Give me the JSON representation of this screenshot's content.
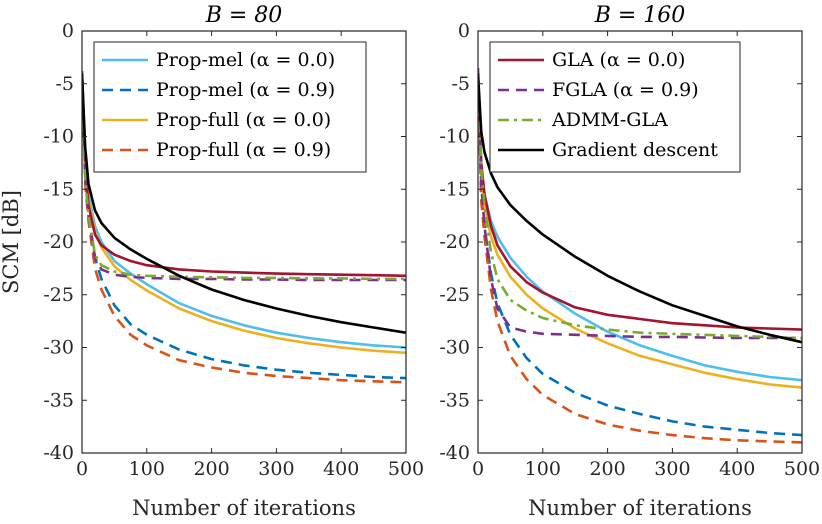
{
  "chart_data": [
    {
      "type": "line",
      "title": "B = 80",
      "xlabel": "Number of iterations",
      "ylabel": "SCM [dB]",
      "xlim": [
        0,
        500
      ],
      "ylim": [
        -40,
        0
      ],
      "xticks": [
        "0",
        "100",
        "200",
        "300",
        "400",
        "500"
      ],
      "yticks": [
        "0",
        "-5",
        "-10",
        "-15",
        "-20",
        "-25",
        "-30",
        "-35",
        "-40"
      ],
      "legend_position": "top-right",
      "legend": [
        "Prop-mel (α = 0.0)",
        "Prop-mel (α = 0.9)",
        "Prop-full (α = 0.0)",
        "Prop-full (α = 0.9)"
      ],
      "x": [
        0,
        5,
        10,
        20,
        30,
        50,
        75,
        100,
        150,
        200,
        250,
        300,
        350,
        400,
        450,
        500
      ],
      "series": [
        {
          "name": "Prop-mel (α = 0.0)",
          "color": "#4DBEEE",
          "dash": "solid",
          "values": [
            -4,
            -12,
            -15.5,
            -18.5,
            -20,
            -21.8,
            -23,
            -24,
            -25.8,
            -27,
            -27.9,
            -28.6,
            -29.1,
            -29.5,
            -29.8,
            -30
          ]
        },
        {
          "name": "Prop-mel (α = 0.9)",
          "color": "#0072BD",
          "dash": "dashed",
          "values": [
            -4,
            -14,
            -17.5,
            -21.5,
            -23.5,
            -26,
            -27.8,
            -28.8,
            -30.2,
            -31.1,
            -31.7,
            -32.1,
            -32.4,
            -32.6,
            -32.8,
            -32.9
          ]
        },
        {
          "name": "Prop-full (α = 0.0)",
          "color": "#EDB120",
          "dash": "solid",
          "values": [
            -4,
            -12.5,
            -16,
            -19,
            -20.5,
            -22.3,
            -23.6,
            -24.6,
            -26.3,
            -27.5,
            -28.4,
            -29.1,
            -29.6,
            -30,
            -30.3,
            -30.5
          ]
        },
        {
          "name": "Prop-full (α = 0.9)",
          "color": "#D95319",
          "dash": "dashed",
          "values": [
            -4,
            -14.5,
            -18,
            -22.5,
            -24.5,
            -27,
            -28.8,
            -29.8,
            -31.2,
            -31.9,
            -32.4,
            -32.7,
            -32.9,
            -33.1,
            -33.2,
            -33.3
          ]
        },
        {
          "name": "GLA (α = 0.0)",
          "color": "#A2142F",
          "dash": "solid",
          "values": [
            -4,
            -13,
            -16.5,
            -19.3,
            -20.3,
            -21.2,
            -21.8,
            -22.2,
            -22.6,
            -22.8,
            -22.9,
            -23,
            -23.05,
            -23.1,
            -23.15,
            -23.2
          ]
        },
        {
          "name": "FGLA (α = 0.9)",
          "color": "#7E2F8E",
          "dash": "dashed",
          "values": [
            -3.8,
            -13.5,
            -17.5,
            -21.5,
            -22.6,
            -23.1,
            -23.3,
            -23.4,
            -23.5,
            -23.5,
            -23.55,
            -23.55,
            -23.6,
            -23.6,
            -23.6,
            -23.6
          ]
        },
        {
          "name": "ADMM-GLA",
          "color": "#77AC30",
          "dash": "dashdot",
          "values": [
            -4,
            -14,
            -17.5,
            -21.2,
            -22.2,
            -22.8,
            -23.1,
            -23.2,
            -23.3,
            -23.35,
            -23.4,
            -23.4,
            -23.45,
            -23.45,
            -23.5,
            -23.5
          ]
        },
        {
          "name": "Gradient descent",
          "color": "#000000",
          "dash": "solid",
          "values": [
            -4,
            -11,
            -14.5,
            -17,
            -18.2,
            -19.6,
            -20.7,
            -21.6,
            -23.2,
            -24.5,
            -25.5,
            -26.3,
            -27,
            -27.6,
            -28.1,
            -28.6
          ]
        }
      ]
    },
    {
      "type": "line",
      "title": "B = 160",
      "xlabel": "Number of iterations",
      "ylabel": "",
      "xlim": [
        0,
        500
      ],
      "ylim": [
        -40,
        0
      ],
      "xticks": [
        "0",
        "100",
        "200",
        "300",
        "400",
        "500"
      ],
      "yticks": [
        "0",
        "-5",
        "-10",
        "-15",
        "-20",
        "-25",
        "-30",
        "-35",
        "-40"
      ],
      "legend_position": "top-right",
      "legend": [
        "GLA (α = 0.0)",
        "FGLA (α = 0.9)",
        "ADMM-GLA",
        "Gradient descent"
      ],
      "x": [
        0,
        5,
        10,
        20,
        30,
        50,
        75,
        100,
        150,
        200,
        250,
        300,
        350,
        400,
        450,
        500
      ],
      "series": [
        {
          "name": "Prop-mel (α = 0.0)",
          "color": "#4DBEEE",
          "dash": "solid",
          "values": [
            -4,
            -13,
            -15.5,
            -18,
            -19.5,
            -21.5,
            -23.3,
            -24.7,
            -26.8,
            -28.5,
            -29.8,
            -30.8,
            -31.7,
            -32.3,
            -32.8,
            -33.1
          ]
        },
        {
          "name": "Prop-mel (α = 0.9)",
          "color": "#0072BD",
          "dash": "dashed",
          "values": [
            -4,
            -15,
            -18.5,
            -23,
            -25.8,
            -28.8,
            -31,
            -32.5,
            -34.3,
            -35.5,
            -36.3,
            -37,
            -37.5,
            -37.8,
            -38.1,
            -38.3
          ]
        },
        {
          "name": "Prop-full (α = 0.0)",
          "color": "#EDB120",
          "dash": "solid",
          "values": [
            -4,
            -13.5,
            -16.5,
            -19.5,
            -21.2,
            -23.3,
            -25,
            -26.3,
            -28.2,
            -29.6,
            -30.8,
            -31.6,
            -32.4,
            -33,
            -33.5,
            -33.8
          ]
        },
        {
          "name": "Prop-full (α = 0.9)",
          "color": "#D95319",
          "dash": "dashed",
          "values": [
            -4,
            -16,
            -19.5,
            -24.5,
            -27.5,
            -30.8,
            -33,
            -34.5,
            -36.3,
            -37.3,
            -37.9,
            -38.3,
            -38.6,
            -38.8,
            -38.9,
            -39
          ]
        },
        {
          "name": "GLA (α = 0.0)",
          "color": "#A2142F",
          "dash": "solid",
          "values": [
            -4,
            -12.5,
            -15.5,
            -18.5,
            -20.3,
            -22.3,
            -23.8,
            -24.8,
            -26.2,
            -26.9,
            -27.3,
            -27.7,
            -27.9,
            -28.1,
            -28.2,
            -28.3
          ]
        },
        {
          "name": "FGLA (α = 0.9)",
          "color": "#7E2F8E",
          "dash": "dashed",
          "values": [
            -3.5,
            -14.5,
            -18.5,
            -23.5,
            -26.3,
            -28.1,
            -28.5,
            -28.7,
            -28.8,
            -28.9,
            -29,
            -29,
            -29.05,
            -29.1,
            -29.1,
            -29.1
          ]
        },
        {
          "name": "ADMM-GLA",
          "color": "#77AC30",
          "dash": "dashdot",
          "values": [
            -4,
            -13,
            -16.5,
            -21,
            -23.5,
            -25.5,
            -26.5,
            -27.2,
            -27.9,
            -28.3,
            -28.6,
            -28.7,
            -28.8,
            -28.9,
            -29,
            -29.1
          ]
        },
        {
          "name": "Gradient descent",
          "color": "#000000",
          "dash": "solid",
          "values": [
            -4,
            -9.5,
            -11.5,
            -13.5,
            -14.8,
            -16.5,
            -18,
            -19.3,
            -21.4,
            -23.2,
            -24.7,
            -26,
            -27,
            -28,
            -28.8,
            -29.5
          ]
        }
      ]
    }
  ]
}
